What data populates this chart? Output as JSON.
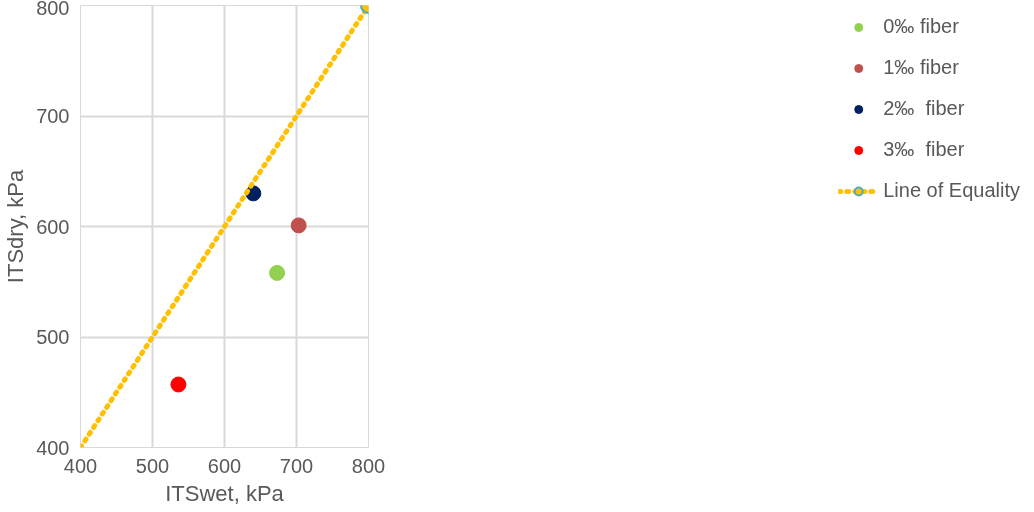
{
  "chart_data": {
    "type": "scatter",
    "xlabel": "ITSwet, kPa",
    "ylabel": "ITSdry, kPa",
    "xlim": [
      400,
      800
    ],
    "ylim": [
      400,
      800
    ],
    "xticks": [
      400,
      500,
      600,
      700,
      800
    ],
    "yticks": [
      400,
      500,
      600,
      700,
      800
    ],
    "grid": true,
    "legend": "right",
    "marker": "circle",
    "series": [
      {
        "name": "0‰ fiber",
        "color": "#92d050",
        "x": [
          673
        ],
        "values": [
          558
        ]
      },
      {
        "name": "1‰ fiber",
        "color": "#c0504d",
        "x": [
          703
        ],
        "values": [
          601
        ]
      },
      {
        "name": "2‰  fiber",
        "color": "#002060",
        "x": [
          640
        ],
        "values": [
          630
        ]
      },
      {
        "name": "3‰  fiber",
        "color": "#ff0000",
        "x": [
          536
        ],
        "values": [
          457
        ]
      },
      {
        "name": "Line of Equality",
        "type": "line",
        "line_style": "dotted",
        "color": "#ffc000",
        "x": [
          400,
          800
        ],
        "values": [
          400,
          800
        ]
      }
    ]
  }
}
